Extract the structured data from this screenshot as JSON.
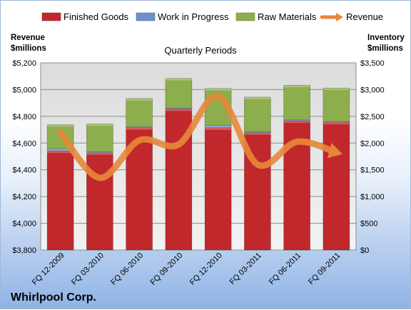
{
  "chart_data": {
    "type": "bar",
    "stacked": true,
    "company": "Whirlpool Corp.",
    "subtitle": "Quarterly Periods",
    "left_axis_title": [
      "Revenue",
      "$millions"
    ],
    "right_axis_title": [
      "Inventory",
      "$millions"
    ],
    "categories": [
      "FQ 12-2009",
      "FQ 03-2010",
      "FQ 06-2010",
      "FQ 09-2010",
      "FQ 12-2010",
      "FQ 03-2011",
      "FQ 06-2011",
      "FQ 09-2011"
    ],
    "left_axis": {
      "min": 3800,
      "max": 5200,
      "ticks": [
        "$3,800",
        "$4,000",
        "$4,200",
        "$4,400",
        "$4,600",
        "$4,800",
        "$5,000",
        "$5,200"
      ]
    },
    "right_axis": {
      "min": 0,
      "max": 3500,
      "ticks": [
        "$0",
        "$500",
        "$1,000",
        "$1,500",
        "$2,000",
        "$2,500",
        "$3,000",
        "$3,500"
      ]
    },
    "series": [
      {
        "name": "Finished Goods",
        "axis": "right",
        "color": "#c0282b",
        "values": [
          1855,
          1820,
          2290,
          2640,
          2288,
          2195,
          2418,
          2390
        ]
      },
      {
        "name": "Work in Progress",
        "axis": "right",
        "color": "#6f8fc8",
        "values": [
          40,
          15,
          15,
          15,
          40,
          15,
          15,
          15
        ]
      },
      {
        "name": "Raw Materials",
        "axis": "right",
        "color": "#8cae4c",
        "values": [
          450,
          525,
          530,
          555,
          695,
          650,
          650,
          625
        ]
      }
    ],
    "line": {
      "name": "Revenue",
      "axis": "left",
      "color": "#e8873a",
      "values": [
        4680,
        4340,
        4620,
        4590,
        4950,
        4440,
        4610,
        4530
      ]
    },
    "legend": [
      "Finished Goods",
      "Work in Progress",
      "Raw Materials",
      "Revenue"
    ],
    "grid": true,
    "legend_position": "top"
  }
}
